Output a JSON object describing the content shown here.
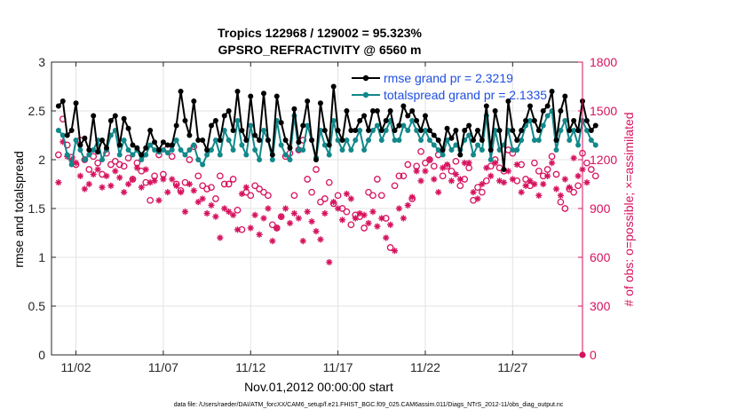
{
  "chart_data": {
    "type": "line",
    "title": "Tropics 122968 / 129002 = 95.323%",
    "subtitle": "GPSRO_REFRACTIVITY @ 6560 m",
    "xlabel": "Nov.01,2012 00:00:00 start",
    "ylabel_left": "rmse and totalspread",
    "ylabel_right": "# of obs: o=possible; ×=assimilated",
    "footer": "data file: /Users/raeder/DAI/ATM_forcXX/CAM6_setup/f.e21.FHIST_BGC.f09_025.CAM6assim.011/Diags_NTrS_2012-11/obs_diag_output.nc",
    "x_ticks": [
      "11/02",
      "11/07",
      "11/12",
      "11/17",
      "11/22",
      "11/27"
    ],
    "x_tick_days": [
      2,
      7,
      12,
      17,
      22,
      27
    ],
    "xlim_days": [
      0.6,
      31.0
    ],
    "ylim_left": [
      0,
      3
    ],
    "y_ticks_left": [
      "0",
      "0.5",
      "1",
      "1.5",
      "2",
      "2.5",
      "3"
    ],
    "ylim_right": [
      0,
      1800
    ],
    "y_ticks_right": [
      "0",
      "300",
      "600",
      "900",
      "1200",
      "1500",
      "1800"
    ],
    "grid": true,
    "legend_position": "top-right",
    "colors": {
      "rmse": "#000000",
      "totalspread": "#12888a",
      "obs": "#d6125e",
      "legend_text": "#1f4fe0",
      "right_axis": "#d6125e",
      "grid": "#e3e3e3"
    },
    "series": [
      {
        "name": "rmse",
        "legend": "rmse grand pr = 2.3219",
        "day0": 1.0,
        "step_days": 0.25,
        "values": [
          2.55,
          2.6,
          2.25,
          2.3,
          2.58,
          2.15,
          2.22,
          2.1,
          2.45,
          2.08,
          2.2,
          2.12,
          2.4,
          2.45,
          2.15,
          2.42,
          2.32,
          2.15,
          2.12,
          2.05,
          2.12,
          2.3,
          2.18,
          2.1,
          2.18,
          2.15,
          2.15,
          2.35,
          2.7,
          2.4,
          2.25,
          2.6,
          2.2,
          2.2,
          2.1,
          2.35,
          2.4,
          2.2,
          2.45,
          2.5,
          2.3,
          2.7,
          2.3,
          2.2,
          2.65,
          2.25,
          2.2,
          2.68,
          2.2,
          2.05,
          2.65,
          2.38,
          2.2,
          2.12,
          2.52,
          2.18,
          2.35,
          2.6,
          2.2,
          2.0,
          2.58,
          2.3,
          2.15,
          2.75,
          2.3,
          2.2,
          2.5,
          2.3,
          2.3,
          2.4,
          2.45,
          2.3,
          2.5,
          2.5,
          2.3,
          2.4,
          2.5,
          2.3,
          2.35,
          2.55,
          2.45,
          2.5,
          2.4,
          2.3,
          2.45,
          2.3,
          2.25,
          2.2,
          2.1,
          2.32,
          2.22,
          2.3,
          2.05,
          2.3,
          2.35,
          2.2,
          2.3,
          2.2,
          2.55,
          2.1,
          2.5,
          2.3,
          1.9,
          2.6,
          2.3,
          2.2,
          2.3,
          2.4,
          2.55,
          2.4,
          2.3,
          2.5,
          2.55,
          2.7,
          2.2,
          2.5,
          2.65,
          2.3,
          2.4,
          2.3,
          2.6,
          2.4,
          2.3,
          2.35
        ]
      },
      {
        "name": "totalspread",
        "legend": "totalspread grand pr = 2.1335",
        "day0": 1.0,
        "step_days": 0.25,
        "values": [
          2.3,
          2.25,
          2.05,
          1.95,
          2.2,
          2.1,
          2.0,
          2.05,
          2.1,
          2.2,
          2.0,
          2.1,
          2.25,
          2.3,
          2.05,
          2.2,
          2.1,
          2.05,
          2.1,
          2.0,
          2.05,
          2.15,
          2.1,
          2.08,
          2.1,
          2.07,
          2.1,
          2.2,
          2.1,
          2.05,
          2.1,
          2.15,
          2.0,
          1.95,
          2.05,
          2.1,
          2.2,
          2.05,
          2.3,
          2.2,
          2.1,
          2.4,
          2.15,
          2.05,
          2.35,
          2.1,
          2.0,
          2.3,
          2.2,
          2.0,
          2.4,
          2.15,
          2.05,
          2.0,
          2.45,
          2.1,
          2.1,
          2.35,
          2.2,
          2.02,
          2.3,
          2.15,
          2.05,
          2.4,
          2.2,
          2.1,
          2.2,
          2.1,
          2.2,
          2.3,
          2.1,
          2.2,
          2.3,
          2.35,
          2.2,
          2.3,
          2.4,
          2.2,
          2.2,
          2.35,
          2.3,
          2.4,
          2.3,
          2.2,
          2.3,
          2.2,
          2.15,
          2.1,
          2.05,
          2.2,
          2.1,
          2.15,
          2.1,
          2.2,
          2.25,
          2.05,
          2.15,
          2.1,
          2.45,
          2.0,
          2.3,
          2.1,
          2.15,
          2.3,
          2.1,
          2.1,
          2.2,
          2.35,
          2.4,
          2.2,
          2.2,
          2.35,
          2.45,
          2.5,
          2.1,
          2.3,
          2.4,
          2.2,
          2.3,
          2.15,
          2.4,
          2.3,
          2.2,
          2.15
        ]
      },
      {
        "name": "obs_possible",
        "marker": "circle",
        "day0": 1.0,
        "step_days": 0.25,
        "values": [
          1230,
          1450,
          1290,
          1215,
          1170,
          1320,
          1200,
          1140,
          1220,
          1180,
          1110,
          1240,
          1170,
          1190,
          1170,
          1160,
          1210,
          1080,
          1180,
          1130,
          1060,
          950,
          1100,
          1230,
          1110,
          1270,
          1220,
          1050,
          1010,
          1060,
          1200,
          1280,
          1100,
          1040,
          1020,
          1030,
          960,
          1100,
          1050,
          1050,
          1080,
          890,
          770,
          1000,
          980,
          1040,
          1020,
          1000,
          980,
          800,
          780,
          850,
          1220,
          1240,
          980,
          1260,
          1320,
          1080,
          1000,
          1140,
          940,
          960,
          1060,
          930,
          980,
          900,
          880,
          800,
          860,
          850,
          780,
          1000,
          980,
          1080,
          980,
          840,
          660,
          1040,
          1100,
          1100,
          1170,
          960,
          1160,
          1250,
          1180,
          1200,
          1160,
          1230,
          1100,
          1160,
          1130,
          1190,
          1040,
          1080,
          1150,
          950,
          1030,
          1000,
          1070,
          1160,
          1200,
          1150,
          1130,
          1260,
          1240,
          1070,
          1170,
          1080,
          1040,
          1180,
          1130,
          1100,
          1140,
          1220,
          1110,
          940,
          900,
          1020,
          1000,
          1040,
          1240,
          1180,
          1140,
          1100
        ]
      },
      {
        "name": "obs_assimilated",
        "marker": "asterisk",
        "day0": 1.0,
        "step_days": 0.25,
        "values": [
          1060,
          1310,
          1220,
          1200,
          1180,
          1100,
          1020,
          1050,
          1110,
          1140,
          1030,
          1100,
          1040,
          1130,
          1090,
          1000,
          1050,
          1080,
          1150,
          1030,
          1140,
          1060,
          1070,
          950,
          1080,
          1000,
          1080,
          1040,
          1000,
          880,
          1050,
          1010,
          940,
          960,
          870,
          920,
          850,
          720,
          900,
          880,
          860,
          770,
          990,
          1030,
          780,
          860,
          740,
          840,
          900,
          700,
          780,
          850,
          900,
          810,
          870,
          840,
          700,
          880,
          820,
          760,
          710,
          870,
          570,
          940,
          900,
          830,
          990,
          960,
          840,
          870,
          860,
          810,
          880,
          790,
          840,
          720,
          800,
          640,
          900,
          840,
          920,
          970,
          1130,
          1070,
          1130,
          1200,
          1080,
          1000,
          1150,
          1170,
          1070,
          1110,
          1080,
          1180,
          1180,
          1000,
          960,
          1050,
          1150,
          1100,
          1180,
          1070,
          1060,
          1130,
          1080,
          1170,
          1000,
          1040,
          1070,
          1050,
          980,
          1050,
          1100,
          1180,
          1020,
          980,
          1080,
          1030,
          1210,
          1100,
          1140,
          1060
        ]
      }
    ],
    "right_axis_end_marker": {
      "day": 31.0,
      "value": 0
    }
  }
}
